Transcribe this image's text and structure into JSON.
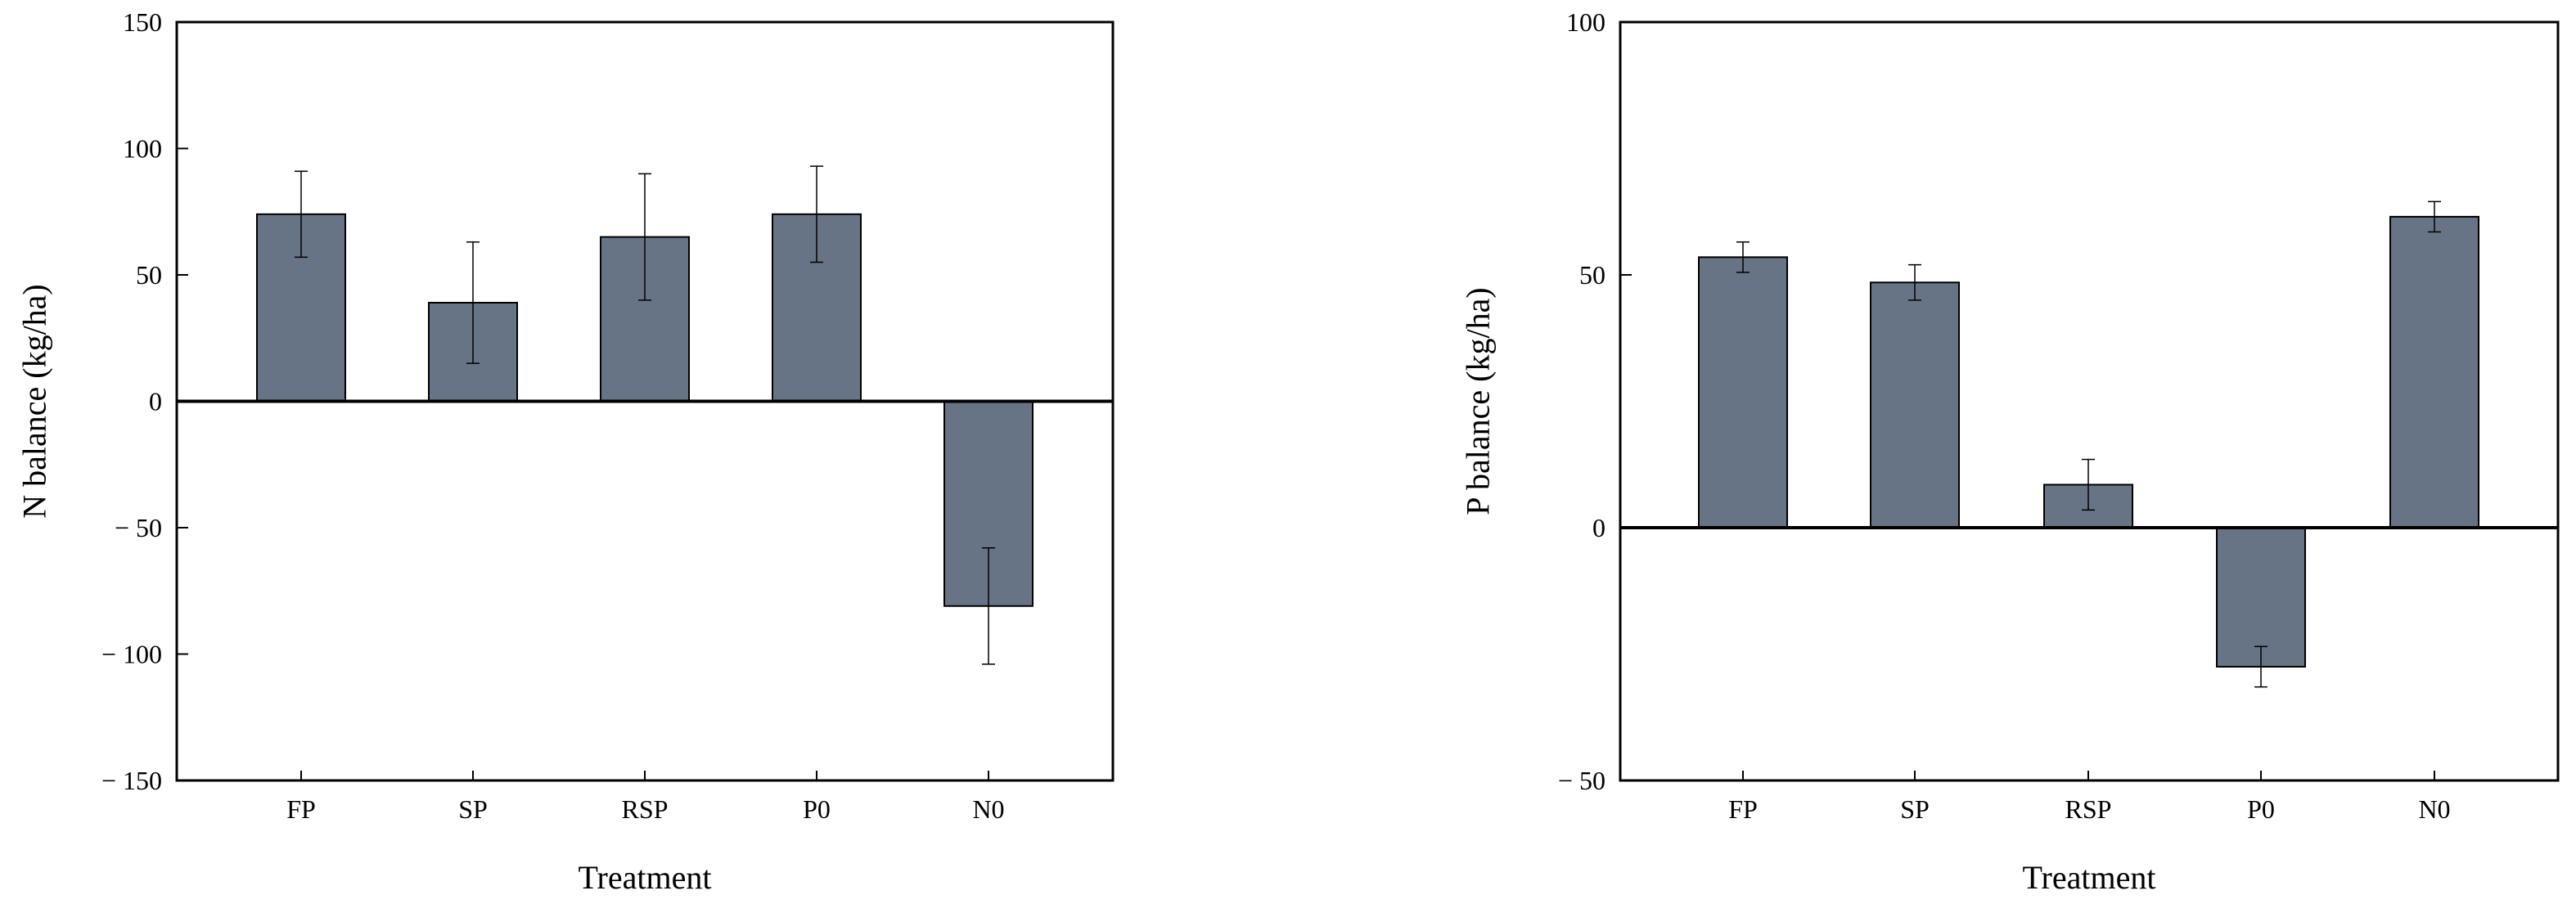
{
  "colors": {
    "bar_fill": "#677485",
    "bar_stroke": "#000000",
    "axis": "#000000",
    "background": "#ffffff"
  },
  "chart_data": [
    {
      "type": "bar",
      "xlabel": "Treatment",
      "ylabel": "N balance (kg/ha)",
      "categories": [
        "FP",
        "SP",
        "RSP",
        "P0",
        "N0"
      ],
      "values": [
        74,
        39,
        65,
        74,
        -81
      ],
      "errors": [
        17,
        24,
        25,
        19,
        23
      ],
      "ylim": [
        -150,
        150
      ],
      "yticks": [
        150,
        100,
        50,
        0,
        -50,
        -100,
        -150
      ],
      "ytick_labels": [
        "150",
        "100",
        "50",
        "0",
        "− 50",
        "− 100",
        "− 150"
      ],
      "grid": false
    },
    {
      "type": "bar",
      "xlabel": "Treatment",
      "ylabel": "P balance (kg/ha)",
      "categories": [
        "FP",
        "SP",
        "RSP",
        "P0",
        "N0"
      ],
      "values": [
        53.5,
        48.5,
        8.5,
        -27.5,
        61.5
      ],
      "errors": [
        3,
        3.5,
        5,
        4,
        3
      ],
      "ylim": [
        -50,
        100
      ],
      "yticks": [
        100,
        50,
        0,
        -50
      ],
      "ytick_labels": [
        "100",
        "50",
        "0",
        "− 50"
      ],
      "grid": false
    }
  ]
}
